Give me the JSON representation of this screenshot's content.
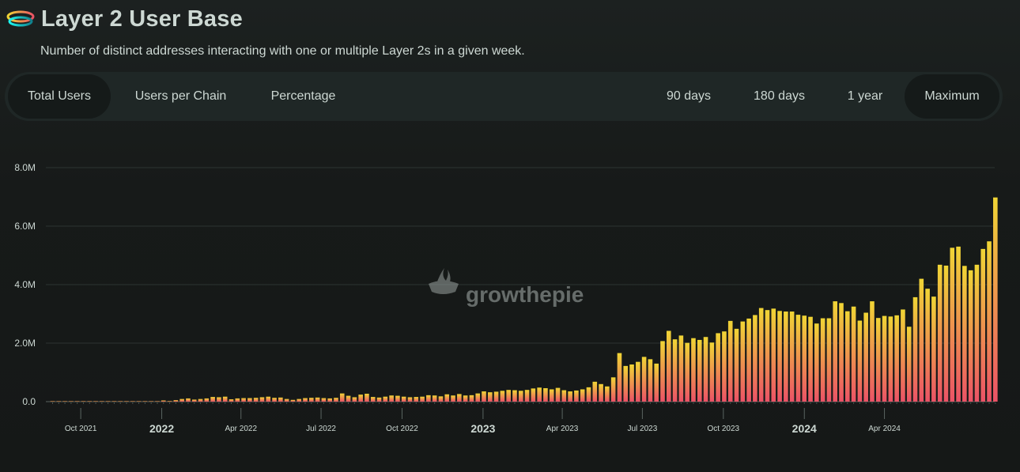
{
  "header": {
    "title": "Layer 2 User Base",
    "subtitle": "Number of distinct addresses interacting with one or multiple Layer 2s in a given week."
  },
  "tabs": {
    "left": [
      {
        "label": "Total Users",
        "active": true
      },
      {
        "label": "Users per Chain",
        "active": false
      },
      {
        "label": "Percentage",
        "active": false
      }
    ],
    "right": [
      {
        "label": "90 days",
        "active": false
      },
      {
        "label": "180 days",
        "active": false
      },
      {
        "label": "1 year",
        "active": false
      },
      {
        "label": "Maximum",
        "active": true
      }
    ]
  },
  "watermark": "growthepie",
  "colors": {
    "bar_top": "#f0d535",
    "bar_bottom": "#eb5266",
    "text": "#cdd8d3",
    "panel": "#1f2726"
  },
  "chart_data": {
    "type": "bar",
    "ylabel": "",
    "xlabel": "",
    "ylim": [
      0,
      8000000
    ],
    "y_ticks": [
      {
        "value": 0,
        "label": "0.0"
      },
      {
        "value": 2000000,
        "label": "2.0M"
      },
      {
        "value": 4000000,
        "label": "4.0M"
      },
      {
        "value": 6000000,
        "label": "6.0M"
      },
      {
        "value": 8000000,
        "label": "8.0M"
      }
    ],
    "x_start": "2021-08-30",
    "x_ticks": [
      {
        "date": "2021-10-01",
        "label": "Oct 2021",
        "major": false
      },
      {
        "date": "2022-01-01",
        "label": "2022",
        "major": true
      },
      {
        "date": "2022-04-01",
        "label": "Apr 2022",
        "major": false
      },
      {
        "date": "2022-07-01",
        "label": "Jul 2022",
        "major": false
      },
      {
        "date": "2022-10-01",
        "label": "Oct 2022",
        "major": false
      },
      {
        "date": "2023-01-01",
        "label": "2023",
        "major": true
      },
      {
        "date": "2023-04-01",
        "label": "Apr 2023",
        "major": false
      },
      {
        "date": "2023-07-01",
        "label": "Jul 2023",
        "major": false
      },
      {
        "date": "2023-10-01",
        "label": "Oct 2023",
        "major": false
      },
      {
        "date": "2024-01-01",
        "label": "2024",
        "major": true
      },
      {
        "date": "2024-04-01",
        "label": "Apr 2024",
        "major": false
      }
    ],
    "grid": true,
    "series": [
      {
        "values": [
          10000,
          10000,
          10000,
          10000,
          10000,
          10000,
          10000,
          10000,
          10000,
          10000,
          10000,
          10000,
          10000,
          10000,
          10000,
          10000,
          10000,
          10000,
          40000,
          20000,
          50000,
          90000,
          110000,
          70000,
          90000,
          110000,
          160000,
          150000,
          170000,
          80000,
          110000,
          120000,
          120000,
          130000,
          150000,
          170000,
          130000,
          140000,
          90000,
          60000,
          90000,
          120000,
          130000,
          140000,
          120000,
          110000,
          130000,
          280000,
          200000,
          150000,
          240000,
          270000,
          160000,
          140000,
          170000,
          210000,
          200000,
          170000,
          150000,
          160000,
          170000,
          220000,
          210000,
          180000,
          250000,
          210000,
          260000,
          210000,
          220000,
          280000,
          350000,
          320000,
          340000,
          370000,
          400000,
          390000,
          370000,
          400000,
          450000,
          480000,
          460000,
          420000,
          470000,
          390000,
          350000,
          380000,
          420000,
          490000,
          680000,
          600000,
          520000,
          830000,
          1660000,
          1220000,
          1270000,
          1360000,
          1530000,
          1450000,
          1300000,
          2070000,
          2420000,
          2130000,
          2260000,
          2010000,
          2170000,
          2110000,
          2210000,
          2020000,
          2340000,
          2400000,
          2760000,
          2490000,
          2740000,
          2840000,
          2960000,
          3200000,
          3130000,
          3180000,
          3100000,
          3080000,
          3080000,
          2970000,
          2940000,
          2900000,
          2670000,
          2850000,
          2850000,
          3430000,
          3370000,
          3090000,
          3250000,
          2770000,
          3040000,
          3430000,
          2860000,
          2930000,
          2910000,
          2950000,
          3150000,
          2560000,
          3570000,
          4200000,
          3860000,
          3590000,
          4680000,
          4650000,
          5260000,
          5300000,
          4640000,
          4490000,
          4680000,
          5220000,
          5480000,
          6980000
        ]
      }
    ]
  }
}
